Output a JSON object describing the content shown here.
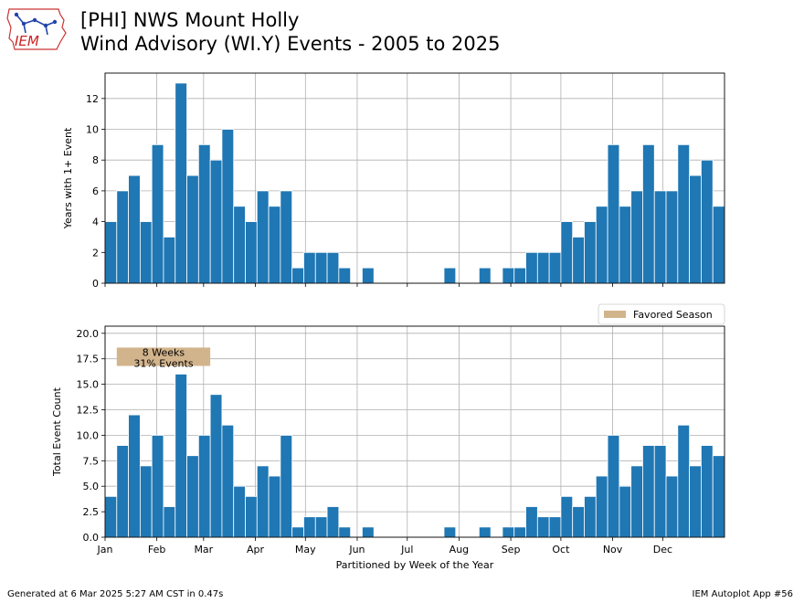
{
  "logo": {
    "text": "IEM"
  },
  "header": {
    "title_line1": "[PHI] NWS Mount Holly",
    "title_line2": "Wind Advisory (WI.Y) Events - 2005 to 2025"
  },
  "footer": {
    "generated": "Generated at 6 Mar 2025 5:27 AM CST in 0.47s",
    "app": "IEM Autoplot App #56"
  },
  "colors": {
    "bar": "#1f77b4",
    "season": "#d2b48c",
    "grid": "#b0b0b0"
  },
  "chart_data": [
    {
      "type": "bar",
      "ylabel": "Years with 1+ Event",
      "ylim": [
        0,
        13.65
      ],
      "yticks": [
        0,
        2,
        4,
        6,
        8,
        10,
        12
      ],
      "ytick_labels": [
        "0",
        "2",
        "4",
        "6",
        "8",
        "10",
        "12"
      ],
      "grid": true,
      "values": [
        4,
        6,
        7,
        4,
        9,
        3,
        13,
        7,
        9,
        8,
        10,
        5,
        4,
        6,
        5,
        6,
        1,
        2,
        2,
        2,
        1,
        0,
        1,
        0,
        0,
        0,
        0,
        0,
        0,
        1,
        0,
        0,
        1,
        0,
        1,
        1,
        2,
        2,
        2,
        4,
        3,
        4,
        5,
        9,
        5,
        6,
        9,
        6,
        6,
        9,
        7,
        8,
        5
      ]
    },
    {
      "type": "bar",
      "ylabel": "Total Event Count",
      "xlabel": "Partitioned by Week of the Year",
      "ylim": [
        0,
        20.7
      ],
      "yticks": [
        0,
        2.5,
        5,
        7.5,
        10,
        12.5,
        15,
        17.5,
        20
      ],
      "ytick_labels": [
        "0.0",
        "2.5",
        "5.0",
        "7.5",
        "10.0",
        "12.5",
        "15.0",
        "17.5",
        "20.0"
      ],
      "grid": true,
      "values": [
        4,
        9,
        12,
        7,
        10,
        3,
        16,
        8,
        10,
        14,
        11,
        5,
        4,
        7,
        6,
        10,
        1,
        2,
        2,
        3,
        1,
        0,
        1,
        0,
        0,
        0,
        0,
        0,
        0,
        1,
        0,
        0,
        1,
        0,
        1,
        1,
        3,
        2,
        2,
        4,
        3,
        4,
        6,
        10,
        5,
        7,
        9,
        9,
        6,
        11,
        7,
        9,
        8
      ],
      "legend": {
        "label": "Favored Season",
        "loc": "top-right"
      },
      "annotation": {
        "line1": "8 Weeks",
        "line2": "31% Events",
        "start_week": 1,
        "end_week": 9,
        "y_low": 16.8,
        "y_high": 18.6
      }
    }
  ],
  "months": {
    "labels": [
      "Jan",
      "Feb",
      "Mar",
      "Apr",
      "May",
      "Jun",
      "Jul",
      "Aug",
      "Sep",
      "Oct",
      "Nov",
      "Dec"
    ],
    "day_of_year": [
      1,
      32,
      60,
      91,
      121,
      152,
      182,
      213,
      244,
      274,
      305,
      335
    ]
  }
}
